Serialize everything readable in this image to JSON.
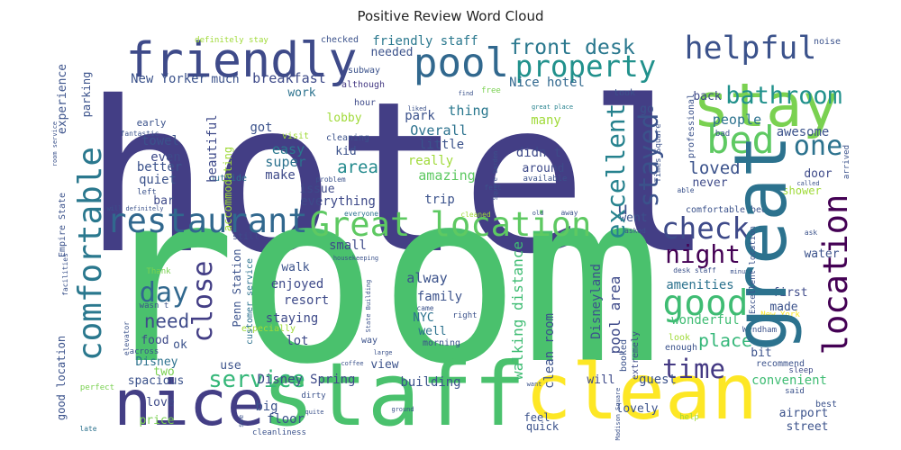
{
  "chart_data": {
    "type": "wordcloud",
    "title": "Positive Review Word Cloud",
    "words": [
      {
        "text": "hotel",
        "weight": 100,
        "color": "#433e85"
      },
      {
        "text": "room",
        "weight": 113,
        "color": "#4ac16d"
      },
      {
        "text": "nice",
        "weight": 30,
        "color": "#433e85"
      },
      {
        "text": "staff",
        "weight": 42,
        "color": "#4ac16d"
      },
      {
        "text": "clean",
        "weight": 37,
        "color": "#fde725"
      },
      {
        "text": "stay",
        "weight": 29,
        "color": "#7ad151"
      },
      {
        "text": "friendly",
        "weight": 23,
        "color": "#3e4a89"
      },
      {
        "text": "pool",
        "weight": 19,
        "color": "#31688e"
      },
      {
        "text": "helpful",
        "weight": 15,
        "color": "#3b528b"
      },
      {
        "text": "property",
        "weight": 14,
        "color": "#21918c"
      },
      {
        "text": "front desk",
        "weight": 10,
        "color": "#2a788e"
      },
      {
        "text": "bed",
        "weight": 18,
        "color": "#5ec962"
      },
      {
        "text": "one",
        "weight": 13,
        "color": "#2c728e"
      },
      {
        "text": "restaurant",
        "weight": 16,
        "color": "#31688e"
      },
      {
        "text": "Great location",
        "weight": 16,
        "color": "#5ec962"
      },
      {
        "text": "check",
        "weight": 14,
        "color": "#3e4a89"
      },
      {
        "text": "night",
        "weight": 12,
        "color": "#440154"
      },
      {
        "text": "good",
        "weight": 17,
        "color": "#3fbc73"
      },
      {
        "text": "time",
        "weight": 12.5,
        "color": "#443983"
      },
      {
        "text": "day",
        "weight": 13,
        "color": "#31688e"
      },
      {
        "text": "service",
        "weight": 11,
        "color": "#35b779"
      },
      {
        "text": "place",
        "weight": 8.6,
        "color": "#35b779"
      },
      {
        "text": "need",
        "weight": 9,
        "color": "#3e4a89"
      },
      {
        "text": "area",
        "weight": 8.2,
        "color": "#238a8d"
      },
      {
        "text": "bathroom",
        "weight": 11.6,
        "color": "#21918c"
      },
      {
        "text": "loved",
        "weight": 8.2,
        "color": "#3b528b"
      },
      {
        "text": "New Yorker",
        "weight": 6,
        "color": "#3b528b"
      },
      {
        "text": "much",
        "weight": 5.6,
        "color": "#3b528b"
      },
      {
        "text": "breakfast",
        "weight": 6.5,
        "color": "#3e4a89"
      },
      {
        "text": "Nice hotel",
        "weight": 6,
        "color": "#31688e"
      },
      {
        "text": "friendly staff",
        "weight": 6,
        "color": "#2a788e"
      },
      {
        "text": "definitely stay",
        "weight": 3.9,
        "color": "#a0da39"
      },
      {
        "text": "checked",
        "weight": 4.3,
        "color": "#3b528b"
      },
      {
        "text": "needed",
        "weight": 5.6,
        "color": "#3b528b"
      },
      {
        "text": "work",
        "weight": 5.6,
        "color": "#2c728e"
      },
      {
        "text": "although",
        "weight": 4.3,
        "color": "#443983"
      },
      {
        "text": "subway",
        "weight": 4.3,
        "color": "#3b528b"
      },
      {
        "text": "hour",
        "weight": 4.3,
        "color": "#3e4a89"
      },
      {
        "text": "free",
        "weight": 3.9,
        "color": "#7ad151"
      },
      {
        "text": "find",
        "weight": 3,
        "color": "#3b528b"
      },
      {
        "text": "liked",
        "weight": 3,
        "color": "#3b528b"
      },
      {
        "text": "great place",
        "weight": 3,
        "color": "#26828e"
      },
      {
        "text": "took",
        "weight": 4.3,
        "color": "#3b528b"
      },
      {
        "text": "back",
        "weight": 5.6,
        "color": "#3e4a89"
      },
      {
        "text": "go",
        "weight": 5.6,
        "color": "#3b528b"
      },
      {
        "text": "thing",
        "weight": 6.5,
        "color": "#2a788e"
      },
      {
        "text": "park",
        "weight": 6,
        "color": "#3b528b"
      },
      {
        "text": "lobby",
        "weight": 5.6,
        "color": "#a0da39"
      },
      {
        "text": "got",
        "weight": 6,
        "color": "#3b528b"
      },
      {
        "text": "easy",
        "weight": 6.5,
        "color": "#2a788e"
      },
      {
        "text": "super",
        "weight": 6.5,
        "color": "#2c728e"
      },
      {
        "text": "make",
        "weight": 6,
        "color": "#3e4a89"
      },
      {
        "text": "kid",
        "weight": 5.6,
        "color": "#3b528b"
      },
      {
        "text": "cleaning",
        "weight": 4.3,
        "color": "#3b528b"
      },
      {
        "text": "visit",
        "weight": 4.3,
        "color": "#a0da39"
      },
      {
        "text": "Overall",
        "weight": 6.5,
        "color": "#2c728e"
      },
      {
        "text": "little",
        "weight": 6,
        "color": "#3b528b"
      },
      {
        "text": "really",
        "weight": 6,
        "color": "#a0da39"
      },
      {
        "text": "amazing",
        "weight": 6.5,
        "color": "#5ec962"
      },
      {
        "text": "didn t",
        "weight": 6,
        "color": "#3e4a89"
      },
      {
        "text": "around",
        "weight": 5.6,
        "color": "#3e4a89"
      },
      {
        "text": "many",
        "weight": 6,
        "color": "#a0da39"
      },
      {
        "text": "people",
        "weight": 6.5,
        "color": "#2c728e"
      },
      {
        "text": "awesome",
        "weight": 6,
        "color": "#3b528b"
      },
      {
        "text": "door",
        "weight": 5.6,
        "color": "#3e4a89"
      },
      {
        "text": "never",
        "weight": 5.6,
        "color": "#3e4a89"
      },
      {
        "text": "able",
        "weight": 3.4,
        "color": "#3b528b"
      },
      {
        "text": "comfortable bed",
        "weight": 4.3,
        "color": "#3b528b"
      },
      {
        "text": "shower",
        "weight": 5.2,
        "color": "#a0da39"
      },
      {
        "text": "issue",
        "weight": 5.6,
        "color": "#3e4a89"
      },
      {
        "text": "everything",
        "weight": 6,
        "color": "#3e4a89"
      },
      {
        "text": "trip",
        "weight": 6,
        "color": "#3b528b"
      },
      {
        "text": "felt",
        "weight": 3.4,
        "color": "#3b528b"
      },
      {
        "text": "cleaned",
        "weight": 3.4,
        "color": "#a0da39"
      },
      {
        "text": "old",
        "weight": 3,
        "color": "#3b528b"
      },
      {
        "text": "away",
        "weight": 3.4,
        "color": "#3b528b"
      },
      {
        "text": "went",
        "weight": 5.6,
        "color": "#3b528b"
      },
      {
        "text": "asked",
        "weight": 3.4,
        "color": "#3b528b"
      },
      {
        "text": "available",
        "weight": 3.9,
        "color": "#3b528b"
      },
      {
        "text": "problem",
        "weight": 3.4,
        "color": "#3b528b"
      },
      {
        "text": "outside",
        "weight": 4.3,
        "color": "#2c728e"
      },
      {
        "text": "everyone",
        "weight": 3.4,
        "color": "#2c728e"
      },
      {
        "text": "still",
        "weight": 4.3,
        "color": "#3e4a89"
      },
      {
        "text": "small",
        "weight": 6,
        "color": "#3e4a89"
      },
      {
        "text": "u",
        "weight": 8.6,
        "color": "#3b528b"
      },
      {
        "text": "Thank",
        "weight": 3.9,
        "color": "#7ad151"
      },
      {
        "text": "walk",
        "weight": 5.6,
        "color": "#3b528b"
      },
      {
        "text": "alway",
        "weight": 6.5,
        "color": "#3b528b"
      },
      {
        "text": "enjoyed",
        "weight": 6,
        "color": "#3e4a89"
      },
      {
        "text": "resort",
        "weight": 6,
        "color": "#3e4a89"
      },
      {
        "text": "family",
        "weight": 6,
        "color": "#3b528b"
      },
      {
        "text": "staying",
        "weight": 6,
        "color": "#3e4a89"
      },
      {
        "text": "NYC",
        "weight": 5.6,
        "color": "#2c728e"
      },
      {
        "text": "came",
        "weight": 3.4,
        "color": "#3b528b"
      },
      {
        "text": "well",
        "weight": 5.6,
        "color": "#2c728e"
      },
      {
        "text": "right",
        "weight": 3.9,
        "color": "#3b528b"
      },
      {
        "text": "lot",
        "weight": 6,
        "color": "#3e4a89"
      },
      {
        "text": "morning",
        "weight": 4.3,
        "color": "#3b528b"
      },
      {
        "text": "way",
        "weight": 4.3,
        "color": "#3b528b"
      },
      {
        "text": "large",
        "weight": 3,
        "color": "#3b528b"
      },
      {
        "text": "coffee",
        "weight": 3,
        "color": "#3b528b"
      },
      {
        "text": "food",
        "weight": 5.6,
        "color": "#3e4a89"
      },
      {
        "text": "ok",
        "weight": 5.6,
        "color": "#3b528b"
      },
      {
        "text": "across",
        "weight": 3.9,
        "color": "#3b528b"
      },
      {
        "text": "Disney",
        "weight": 5.6,
        "color": "#2c728e"
      },
      {
        "text": "two",
        "weight": 5.6,
        "color": "#7ad151"
      },
      {
        "text": "use",
        "weight": 5.6,
        "color": "#3b528b"
      },
      {
        "text": "Disney Spring",
        "weight": 6,
        "color": "#3e4a89"
      },
      {
        "text": "building",
        "weight": 6,
        "color": "#3b528b"
      },
      {
        "text": "view",
        "weight": 5.6,
        "color": "#3b528b"
      },
      {
        "text": "spacious",
        "weight": 5.6,
        "color": "#3b528b"
      },
      {
        "text": "love",
        "weight": 5.6,
        "color": "#3e4a89"
      },
      {
        "text": "price",
        "weight": 5.6,
        "color": "#7ad151"
      },
      {
        "text": "big",
        "weight": 6,
        "color": "#3b528b"
      },
      {
        "text": "floor",
        "weight": 6,
        "color": "#3b528b"
      },
      {
        "text": "dirty",
        "weight": 3.9,
        "color": "#3b528b"
      },
      {
        "text": "quite",
        "weight": 3,
        "color": "#3b528b"
      },
      {
        "text": "ground",
        "weight": 3,
        "color": "#3b528b"
      },
      {
        "text": "will",
        "weight": 5.6,
        "color": "#3e4a89"
      },
      {
        "text": "guest",
        "weight": 6,
        "color": "#3b528b"
      },
      {
        "text": "lovely",
        "weight": 5.6,
        "color": "#3b528b"
      },
      {
        "text": "feel",
        "weight": 5.2,
        "color": "#3b528b"
      },
      {
        "text": "quick",
        "weight": 5.2,
        "color": "#3b528b"
      },
      {
        "text": "want",
        "weight": 3,
        "color": "#3b528b"
      },
      {
        "text": "amenities",
        "weight": 6,
        "color": "#2c728e"
      },
      {
        "text": "made",
        "weight": 5.6,
        "color": "#3b528b"
      },
      {
        "text": "first",
        "weight": 5.6,
        "color": "#3e4a89"
      },
      {
        "text": "water",
        "weight": 5.6,
        "color": "#3b528b"
      },
      {
        "text": "ask",
        "weight": 3.4,
        "color": "#3b528b"
      },
      {
        "text": "wonderful",
        "weight": 6,
        "color": "#3fbc73"
      },
      {
        "text": "New York",
        "weight": 3.9,
        "color": "#fde725"
      },
      {
        "text": "look",
        "weight": 4.3,
        "color": "#a0da39"
      },
      {
        "text": "enough",
        "weight": 4.3,
        "color": "#3b528b"
      },
      {
        "text": "minute",
        "weight": 3,
        "color": "#3b528b"
      },
      {
        "text": "desk staff",
        "weight": 3.4,
        "color": "#3b528b"
      },
      {
        "text": "recommend",
        "weight": 4.3,
        "color": "#3b528b"
      },
      {
        "text": "sleep",
        "weight": 3.9,
        "color": "#3e4a89"
      },
      {
        "text": "convenient",
        "weight": 6,
        "color": "#3fbc73"
      },
      {
        "text": "said",
        "weight": 3.9,
        "color": "#3b528b"
      },
      {
        "text": "best",
        "weight": 4.3,
        "color": "#3b528b"
      },
      {
        "text": "airport",
        "weight": 5.6,
        "color": "#3b528b"
      },
      {
        "text": "street",
        "weight": 5.6,
        "color": "#3b528b"
      },
      {
        "text": "help",
        "weight": 3.9,
        "color": "#a0da39"
      },
      {
        "text": "bit",
        "weight": 5.6,
        "color": "#3b528b"
      },
      {
        "text": "Wyndham",
        "weight": 3.9,
        "color": "#3b528b"
      },
      {
        "text": "early",
        "weight": 4.7,
        "color": "#3b528b"
      },
      {
        "text": "fantastic",
        "weight": 3.4,
        "color": "#3b528b"
      },
      {
        "text": "towel",
        "weight": 6,
        "color": "#3b528b"
      },
      {
        "text": "even",
        "weight": 6,
        "color": "#3e4a89"
      },
      {
        "text": "better",
        "weight": 6,
        "color": "#3b528b"
      },
      {
        "text": "quiet",
        "weight": 6,
        "color": "#3b528b"
      },
      {
        "text": "bar",
        "weight": 5.6,
        "color": "#3e4a89"
      },
      {
        "text": "left",
        "weight": 3.9,
        "color": "#3b528b"
      },
      {
        "text": "will definitely",
        "weight": 3,
        "color": "#3b528b"
      },
      {
        "text": "perfect",
        "weight": 3.9,
        "color": "#7ad151"
      },
      {
        "text": "late",
        "weight": 3.4,
        "color": "#2c728e"
      },
      {
        "text": "noise",
        "weight": 4.3,
        "color": "#3b528b"
      },
      {
        "text": "bad",
        "weight": 3.9,
        "color": "#3b528b"
      },
      {
        "text": "called",
        "weight": 3,
        "color": "#3b528b"
      },
      {
        "text": "wasn t",
        "weight": 3.9,
        "color": "#3b528b"
      },
      {
        "text": "housekeeping",
        "weight": 3,
        "color": "#3b528b"
      },
      {
        "text": "especially",
        "weight": 4.3,
        "color": "#a0da39"
      },
      {
        "text": "cleanliness",
        "weight": 3.9,
        "color": "#3b528b"
      },
      {
        "text": "comfortable",
        "weight": 15.5,
        "color": "#2a788e"
      },
      {
        "text": "great",
        "weight": 34.5,
        "color": "#2c728e"
      },
      {
        "text": "location",
        "weight": 16,
        "color": "#440154"
      },
      {
        "text": "excellent",
        "weight": 12,
        "color": "#26828e"
      },
      {
        "text": "stayed",
        "weight": 12.5,
        "color": "#3b528b"
      },
      {
        "text": "close",
        "weight": 13,
        "color": "#433e85"
      },
      {
        "text": "beautiful",
        "weight": 6,
        "color": "#3e4a89"
      },
      {
        "text": "accommodating",
        "weight": 5.2,
        "color": "#a0da39"
      },
      {
        "text": "Penn Station",
        "weight": 5.2,
        "color": "#3b528b"
      },
      {
        "text": "customer service",
        "weight": 4.3,
        "color": "#2c728e"
      },
      {
        "text": "walking distance",
        "weight": 6.9,
        "color": "#3fbc73"
      },
      {
        "text": "clean room",
        "weight": 6,
        "color": "#3b528b"
      },
      {
        "text": "Disneyland",
        "weight": 6,
        "color": "#3b528b"
      },
      {
        "text": "pool area",
        "weight": 6.9,
        "color": "#3e4a89"
      },
      {
        "text": "booked",
        "weight": 4.3,
        "color": "#3b528b"
      },
      {
        "text": "extremely",
        "weight": 4.3,
        "color": "#3e4a89"
      },
      {
        "text": "Times Square",
        "weight": 3.9,
        "color": "#3b528b"
      },
      {
        "text": "professional",
        "weight": 4.3,
        "color": "#3b528b"
      },
      {
        "text": "Square Garden",
        "weight": 3,
        "color": "#3b528b"
      },
      {
        "text": "Madison Square",
        "weight": 3,
        "color": "#3b528b"
      },
      {
        "text": "State Building",
        "weight": 3,
        "color": "#3b528b"
      },
      {
        "text": "Empire State",
        "weight": 4.3,
        "color": "#3b528b"
      },
      {
        "text": "experience",
        "weight": 5.6,
        "color": "#3b528b"
      },
      {
        "text": "parking",
        "weight": 5.2,
        "color": "#3b528b"
      },
      {
        "text": "facilities",
        "weight": 3.4,
        "color": "#3b528b"
      },
      {
        "text": "good location",
        "weight": 5.2,
        "color": "#3b528b"
      },
      {
        "text": "elevator",
        "weight": 3.4,
        "color": "#3b528b"
      },
      {
        "text": "room service",
        "weight": 3,
        "color": "#3b528b"
      },
      {
        "text": "Excellent location",
        "weight": 3.9,
        "color": "#3b528b"
      },
      {
        "text": "arrived",
        "weight": 3.9,
        "color": "#3b528b"
      },
      {
        "text": "see",
        "weight": 3.4,
        "color": "#3b528b"
      }
    ]
  }
}
